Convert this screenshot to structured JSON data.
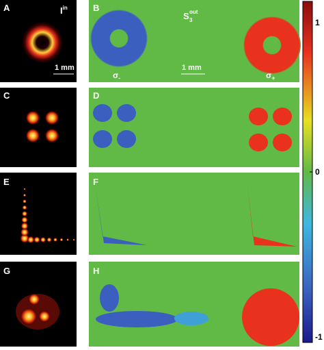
{
  "panels": [
    {
      "label": "A"
    },
    {
      "label": "B"
    },
    {
      "label": "C"
    },
    {
      "label": "D"
    },
    {
      "label": "E"
    },
    {
      "label": "F"
    },
    {
      "label": "G"
    },
    {
      "label": "H"
    }
  ],
  "annotations": {
    "intensity": {
      "base": "I",
      "sup": "in"
    },
    "stokes": {
      "base": "S",
      "sub": "3",
      "sup": "out"
    },
    "scale_left": "1 mm",
    "scale_right": "1 mm",
    "sigma_minus": {
      "base": "σ",
      "sub": "-"
    },
    "sigma_plus": {
      "base": "σ",
      "sub": "+"
    }
  },
  "colorbar": {
    "lim": [
      -1,
      1
    ],
    "ticks": [
      1,
      0,
      -1
    ]
  }
}
